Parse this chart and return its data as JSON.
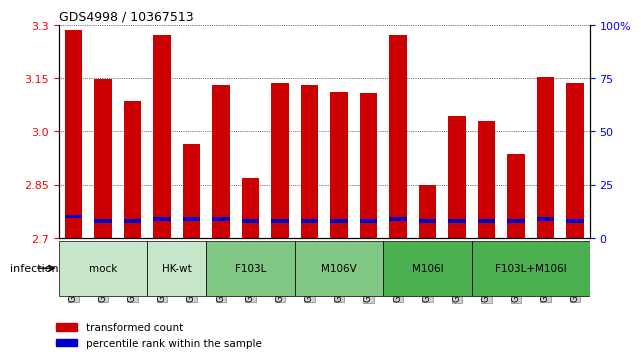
{
  "title": "GDS4998 / 10367513",
  "samples": [
    "GSM1172653",
    "GSM1172654",
    "GSM1172655",
    "GSM1172656",
    "GSM1172657",
    "GSM1172658",
    "GSM1172659",
    "GSM1172660",
    "GSM1172661",
    "GSM1172662",
    "GSM1172663",
    "GSM1172664",
    "GSM1172665",
    "GSM1172666",
    "GSM1172667",
    "GSM1172668",
    "GSM1172669",
    "GSM1172670"
  ],
  "transformed_counts": [
    3.285,
    3.147,
    3.085,
    3.27,
    2.963,
    3.13,
    2.868,
    3.135,
    3.13,
    3.11,
    3.107,
    3.27,
    2.848,
    3.043,
    3.028,
    2.935,
    3.152,
    3.135
  ],
  "percentile_ranks": [
    10,
    8,
    8,
    9,
    9,
    9,
    8,
    8,
    8,
    8,
    8,
    9,
    8,
    8,
    8,
    8,
    9,
    8
  ],
  "groups": [
    {
      "label": "mock",
      "color": "#d4edda",
      "start": 0,
      "end": 2
    },
    {
      "label": "HK-wt",
      "color": "#d4edda",
      "start": 3,
      "end": 4
    },
    {
      "label": "F103L",
      "color": "#90ee90",
      "start": 5,
      "end": 7
    },
    {
      "label": "M106V",
      "color": "#90ee90",
      "start": 8,
      "end": 10
    },
    {
      "label": "M106I",
      "color": "#32cd32",
      "start": 11,
      "end": 13
    },
    {
      "label": "F103L+M106I",
      "color": "#32cd32",
      "start": 14,
      "end": 17
    }
  ],
  "group_colors": {
    "mock": "#c8e6c9",
    "HK-wt": "#c8e6c9",
    "F103L": "#81c784",
    "M106V": "#81c784",
    "M106I": "#4caf50",
    "F103L+M106I": "#4caf50"
  },
  "ylim_left": [
    2.7,
    3.3
  ],
  "ylim_right": [
    0,
    100
  ],
  "yticks_left": [
    2.7,
    2.85,
    3.0,
    3.15,
    3.3
  ],
  "yticks_right": [
    0,
    25,
    50,
    75,
    100
  ],
  "bar_color_red": "#cc0000",
  "bar_color_blue": "#0000cc",
  "bar_width": 0.6,
  "grid_color": "black",
  "bg_plot": "white",
  "bg_xticklabel": "#d0d0d0",
  "infection_label": "infection",
  "legend_red": "transformed count",
  "legend_blue": "percentile rank within the sample"
}
